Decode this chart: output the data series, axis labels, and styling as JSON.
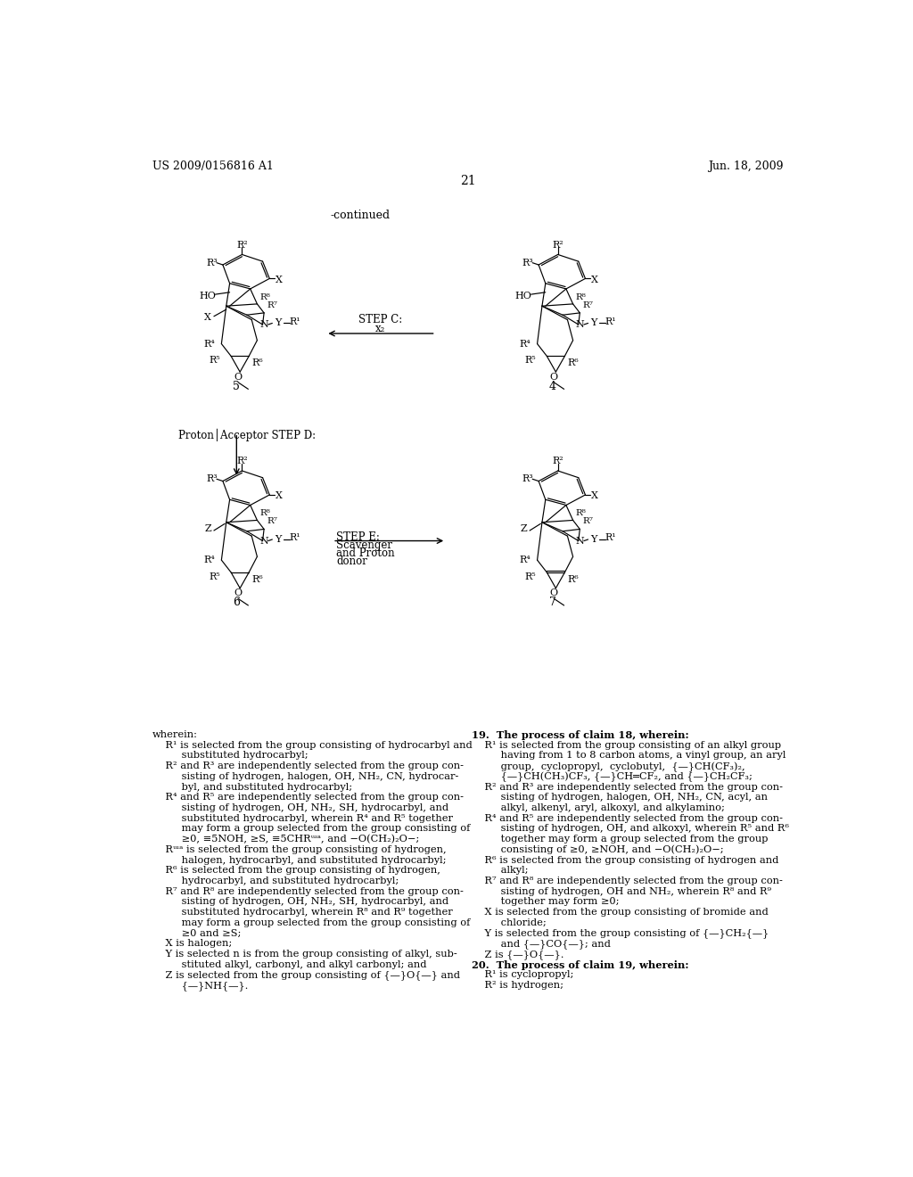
{
  "bg_color": "#ffffff",
  "header_left": "US 2009/0156816 A1",
  "header_right": "Jun. 18, 2009",
  "page_number": "21",
  "continued_label": "-continued",
  "left_col_text": [
    [
      "wherein:",
      false
    ],
    [
      "    R¹ is selected from the group consisting of hydrocarbyl and",
      false
    ],
    [
      "         substituted hydrocarbyl;",
      false
    ],
    [
      "    R² and R³ are independently selected from the group con-",
      false
    ],
    [
      "         sisting of hydrogen, halogen, OH, NH₂, CN, hydrocar-",
      false
    ],
    [
      "         byl, and substituted hydrocarbyl;",
      false
    ],
    [
      "    R⁴ and R⁵ are independently selected from the group con-",
      false
    ],
    [
      "         sisting of hydrogen, OH, NH₂, SH, hydrocarbyl, and",
      false
    ],
    [
      "         substituted hydrocarbyl, wherein R⁴ and R⁵ together",
      false
    ],
    [
      "         may form a group selected from the group consisting of",
      false
    ],
    [
      "         ≥0, ≡5NOH, ≥S, ≡5CHRᵚᵃ, and −O(CH₂)₂O−;",
      false
    ],
    [
      "    Rᵚᵃ is selected from the group consisting of hydrogen,",
      false
    ],
    [
      "         halogen, hydrocarbyl, and substituted hydrocarbyl;",
      false
    ],
    [
      "    R⁶ is selected from the group consisting of hydrogen,",
      false
    ],
    [
      "         hydrocarbyl, and substituted hydrocarbyl;",
      false
    ],
    [
      "    R⁷ and R⁸ are independently selected from the group con-",
      false
    ],
    [
      "         sisting of hydrogen, OH, NH₂, SH, hydrocarbyl, and",
      false
    ],
    [
      "         substituted hydrocarbyl, wherein R⁸ and R⁹ together",
      false
    ],
    [
      "         may form a group selected from the group consisting of",
      false
    ],
    [
      "         ≥0 and ≥S;",
      false
    ],
    [
      "    X is halogen;",
      false
    ],
    [
      "    Y is selected n is from the group consisting of alkyl, sub-",
      false
    ],
    [
      "         stituted alkyl, carbonyl, and alkyl carbonyl; and",
      false
    ],
    [
      "    Z is selected from the group consisting of {—}O{—} and",
      false
    ],
    [
      "         {—}NH{—}.",
      false
    ]
  ],
  "right_col_text": [
    [
      "19.  The process of claim 18, wherein:",
      true
    ],
    [
      "    R¹ is selected from the group consisting of an alkyl group",
      false
    ],
    [
      "         having from 1 to 8 carbon atoms, a vinyl group, an aryl",
      false
    ],
    [
      "         group,  cyclopropyl,  cyclobutyl,  {—}CH(CF₃)₂,",
      false
    ],
    [
      "         {—}CH(CH₃)CF₃, {—}CH═CF₂, and {—}CH₂CF₃;",
      false
    ],
    [
      "    R² and R³ are independently selected from the group con-",
      false
    ],
    [
      "         sisting of hydrogen, halogen, OH, NH₂, CN, acyl, an",
      false
    ],
    [
      "         alkyl, alkenyl, aryl, alkoxyl, and alkylamino;",
      false
    ],
    [
      "    R⁴ and R⁵ are independently selected from the group con-",
      false
    ],
    [
      "         sisting of hydrogen, OH, and alkoxyl, wherein R⁵ and R⁶",
      false
    ],
    [
      "         together may form a group selected from the group",
      false
    ],
    [
      "         consisting of ≥0, ≥NOH, and −O(CH₂)₂O−;",
      false
    ],
    [
      "    R⁶ is selected from the group consisting of hydrogen and",
      false
    ],
    [
      "         alkyl;",
      false
    ],
    [
      "    R⁷ and R⁸ are independently selected from the group con-",
      false
    ],
    [
      "         sisting of hydrogen, OH and NH₂, wherein R⁸ and R⁹",
      false
    ],
    [
      "         together may form ≥0;",
      false
    ],
    [
      "    X is selected from the group consisting of bromide and",
      false
    ],
    [
      "         chloride;",
      false
    ],
    [
      "    Y is selected from the group consisting of {—}CH₂{—}",
      false
    ],
    [
      "         and {—}CO{—}; and",
      false
    ],
    [
      "    Z is {—}O{—}.",
      false
    ],
    [
      "20.  The process of claim 19, wherein:",
      true
    ],
    [
      "    R¹ is cyclopropyl;",
      false
    ],
    [
      "    R² is hydrogen;",
      false
    ]
  ]
}
